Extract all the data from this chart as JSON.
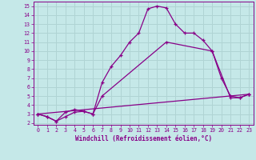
{
  "xlabel": "Windchill (Refroidissement éolien,°C)",
  "bg_color": "#c5e8e8",
  "grid_color": "#b0d4d4",
  "line_color": "#880088",
  "xlim": [
    -0.5,
    23.5
  ],
  "ylim": [
    1.8,
    15.5
  ],
  "xticks": [
    0,
    1,
    2,
    3,
    4,
    5,
    6,
    7,
    8,
    9,
    10,
    11,
    12,
    13,
    14,
    15,
    16,
    17,
    18,
    19,
    20,
    21,
    22,
    23
  ],
  "yticks": [
    2,
    3,
    4,
    5,
    6,
    7,
    8,
    9,
    10,
    11,
    12,
    13,
    14,
    15
  ],
  "line1_x": [
    0,
    1,
    2,
    3,
    4,
    5,
    6,
    7,
    8,
    9,
    10,
    11,
    12,
    13,
    14,
    15,
    16,
    17,
    18,
    19,
    20,
    21,
    22,
    23
  ],
  "line1_y": [
    3.0,
    2.7,
    2.2,
    2.7,
    3.2,
    3.3,
    3.0,
    6.5,
    8.3,
    9.5,
    11.0,
    12.0,
    14.7,
    15.0,
    14.8,
    13.0,
    12.0,
    12.0,
    11.2,
    10.0,
    7.0,
    5.0,
    4.8,
    5.2
  ],
  "line2_x": [
    0,
    1,
    2,
    3,
    4,
    5,
    6,
    7,
    14,
    19,
    21,
    22,
    23
  ],
  "line2_y": [
    3.0,
    2.7,
    2.2,
    3.2,
    3.5,
    3.3,
    3.0,
    5.0,
    11.0,
    10.0,
    4.8,
    4.8,
    5.2
  ],
  "line3_x": [
    0,
    23
  ],
  "line3_y": [
    3.0,
    5.2
  ]
}
